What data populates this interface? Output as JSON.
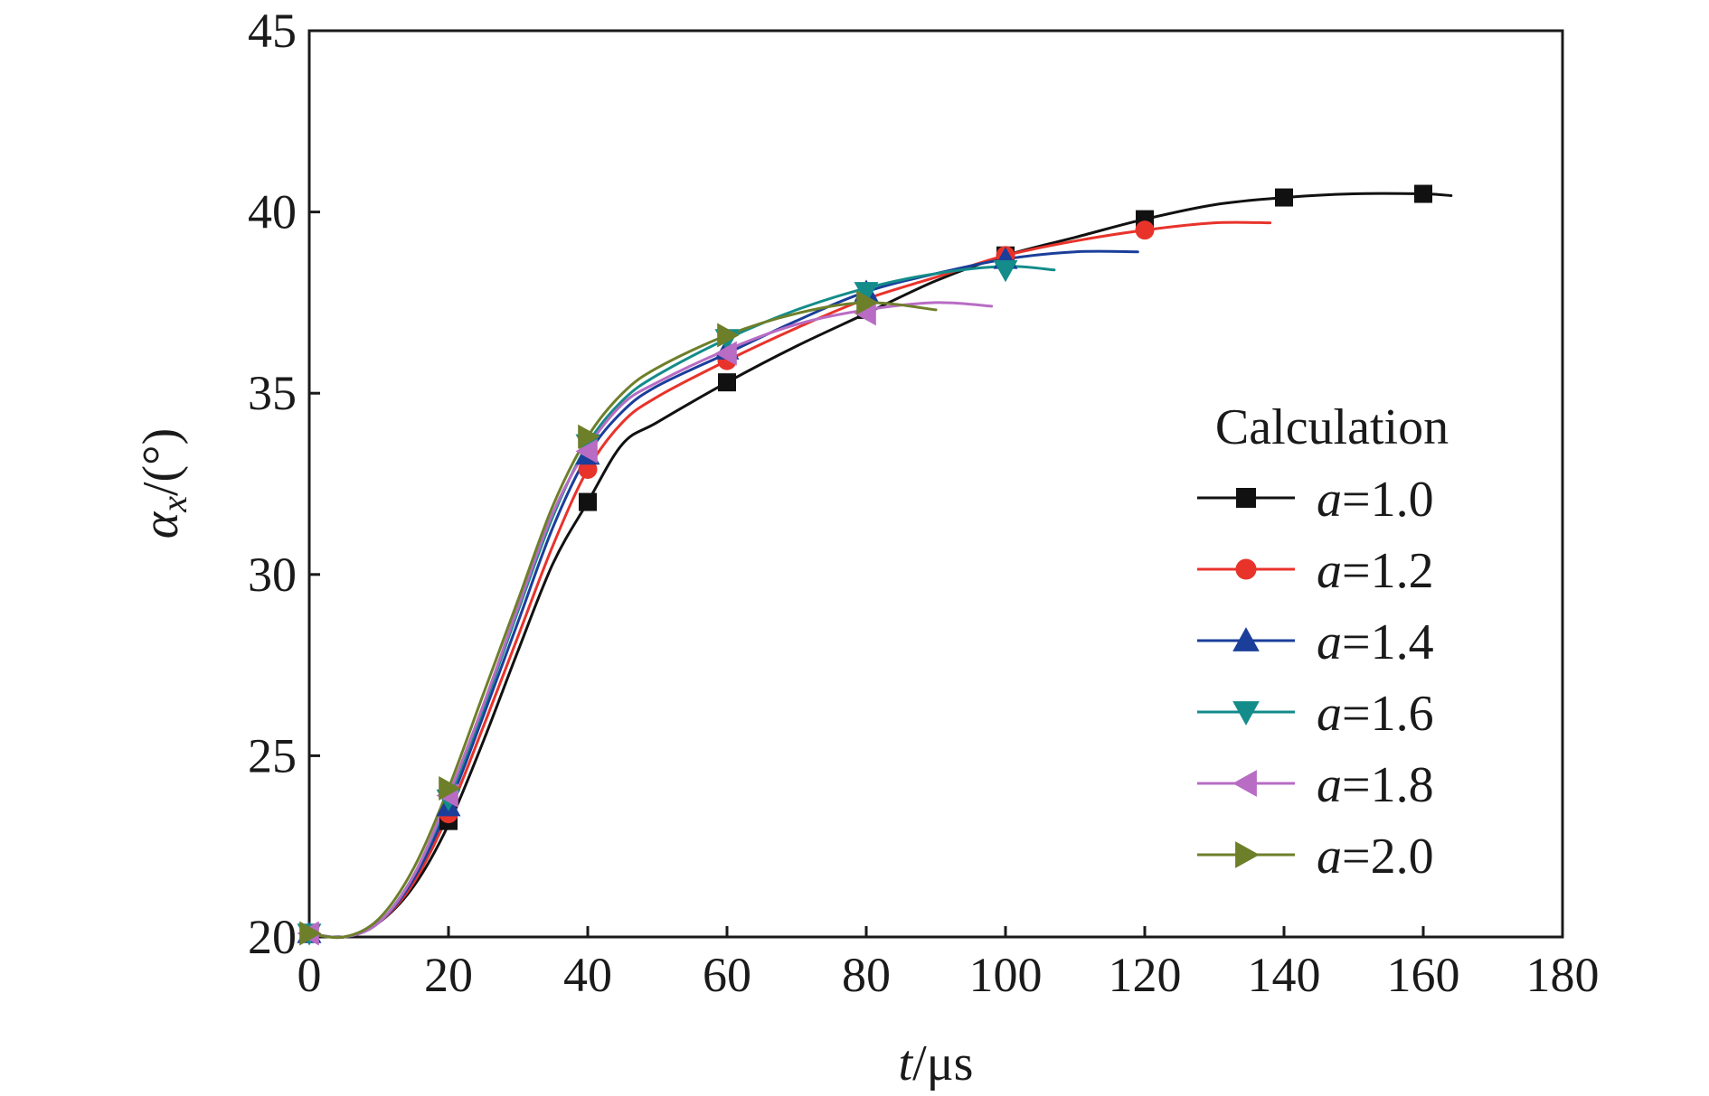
{
  "chart_data": {
    "type": "line",
    "xlabel": {
      "var": "t",
      "unit": "/μs"
    },
    "ylabel": {
      "var": "α",
      "sub": "x",
      "unit": "/(°)"
    },
    "xlim": [
      0,
      180
    ],
    "ylim": [
      20,
      45
    ],
    "xticks": [
      0,
      20,
      40,
      60,
      80,
      100,
      120,
      140,
      160,
      180
    ],
    "yticks": [
      20,
      25,
      30,
      35,
      40,
      45
    ],
    "grid": false,
    "legend": {
      "title": "Calculation",
      "position": "right",
      "var": "a"
    },
    "series": [
      {
        "name": "a=1.0",
        "label_var": "a",
        "label_val": "=1.0",
        "color": "#111111",
        "marker": "square",
        "x": [
          0,
          5,
          10,
          15,
          20,
          25,
          30,
          35,
          40,
          45,
          50,
          60,
          70,
          80,
          90,
          100,
          110,
          120,
          130,
          140,
          150,
          160,
          164
        ],
        "y": [
          20.1,
          20.0,
          20.4,
          21.4,
          23.1,
          25.4,
          27.9,
          30.3,
          32.0,
          33.6,
          34.2,
          35.3,
          36.3,
          37.2,
          38.1,
          38.8,
          39.3,
          39.8,
          40.2,
          40.4,
          40.5,
          40.5,
          40.45
        ],
        "markers_x": [
          0,
          20,
          40,
          60,
          80,
          100,
          120,
          140,
          160
        ],
        "markers_y": [
          20.1,
          23.2,
          32.0,
          35.3,
          37.3,
          38.8,
          39.8,
          40.4,
          40.5
        ]
      },
      {
        "name": "a=1.2",
        "label_var": "a",
        "label_val": "=1.2",
        "color": "#e8332b",
        "marker": "circle",
        "x": [
          0,
          5,
          10,
          15,
          20,
          25,
          30,
          35,
          40,
          45,
          50,
          60,
          70,
          80,
          90,
          100,
          110,
          120,
          130,
          138
        ],
        "y": [
          20.1,
          20.0,
          20.4,
          21.5,
          23.4,
          25.8,
          28.3,
          30.8,
          32.9,
          34.2,
          34.9,
          35.9,
          36.8,
          37.6,
          38.2,
          38.8,
          39.2,
          39.5,
          39.7,
          39.7
        ],
        "markers_x": [
          0,
          20,
          40,
          60,
          100,
          120
        ],
        "markers_y": [
          20.1,
          23.4,
          32.9,
          35.9,
          38.8,
          39.5
        ]
      },
      {
        "name": "a=1.4",
        "label_var": "a",
        "label_val": "=1.4",
        "color": "#1a3e9a",
        "marker": "triangle-up",
        "x": [
          0,
          5,
          10,
          15,
          20,
          25,
          30,
          35,
          40,
          45,
          50,
          60,
          70,
          80,
          90,
          100,
          110,
          119
        ],
        "y": [
          20.1,
          20.0,
          20.4,
          21.6,
          23.6,
          26.1,
          28.7,
          31.3,
          33.3,
          34.5,
          35.2,
          36.1,
          37.0,
          37.8,
          38.3,
          38.7,
          38.9,
          38.9
        ],
        "markers_x": [
          0,
          20,
          40,
          60,
          80,
          100
        ],
        "markers_y": [
          20.1,
          23.6,
          33.3,
          36.2,
          37.8,
          38.7
        ]
      },
      {
        "name": "a=1.6",
        "label_var": "a",
        "label_val": "=1.6",
        "color": "#138c8a",
        "marker": "triangle-down",
        "x": [
          0,
          5,
          10,
          15,
          20,
          25,
          30,
          35,
          40,
          45,
          50,
          60,
          70,
          80,
          90,
          100,
          107
        ],
        "y": [
          20.1,
          20.0,
          20.4,
          21.7,
          23.8,
          26.3,
          29.0,
          31.6,
          33.6,
          34.8,
          35.5,
          36.5,
          37.3,
          37.9,
          38.3,
          38.5,
          38.4
        ],
        "markers_x": [
          0,
          20,
          40,
          60,
          80,
          100
        ],
        "markers_y": [
          20.1,
          23.8,
          33.6,
          36.5,
          37.8,
          38.4
        ]
      },
      {
        "name": "a=1.8",
        "label_var": "a",
        "label_val": "=1.8",
        "color": "#b86cc4",
        "marker": "triangle-left",
        "x": [
          0,
          5,
          10,
          15,
          20,
          25,
          30,
          35,
          40,
          45,
          50,
          60,
          70,
          80,
          90,
          98
        ],
        "y": [
          20.1,
          20.0,
          20.4,
          21.7,
          23.9,
          26.4,
          29.1,
          31.7,
          33.5,
          34.7,
          35.3,
          36.2,
          36.9,
          37.3,
          37.5,
          37.4
        ],
        "markers_x": [
          0,
          20,
          40,
          60,
          80
        ],
        "markers_y": [
          20.1,
          23.9,
          33.4,
          36.1,
          37.2
        ]
      },
      {
        "name": "a=2.0",
        "label_var": "a",
        "label_val": "=2.0",
        "color": "#6e7f2a",
        "marker": "triangle-right",
        "x": [
          0,
          5,
          10,
          15,
          20,
          25,
          30,
          35,
          40,
          45,
          50,
          60,
          70,
          80,
          90
        ],
        "y": [
          20.1,
          20.0,
          20.5,
          21.9,
          24.1,
          26.7,
          29.3,
          31.9,
          33.8,
          35.0,
          35.7,
          36.6,
          37.2,
          37.5,
          37.3
        ],
        "markers_x": [
          0,
          20,
          40,
          60,
          80
        ],
        "markers_y": [
          20.1,
          24.1,
          33.8,
          36.6,
          37.5
        ]
      }
    ]
  }
}
